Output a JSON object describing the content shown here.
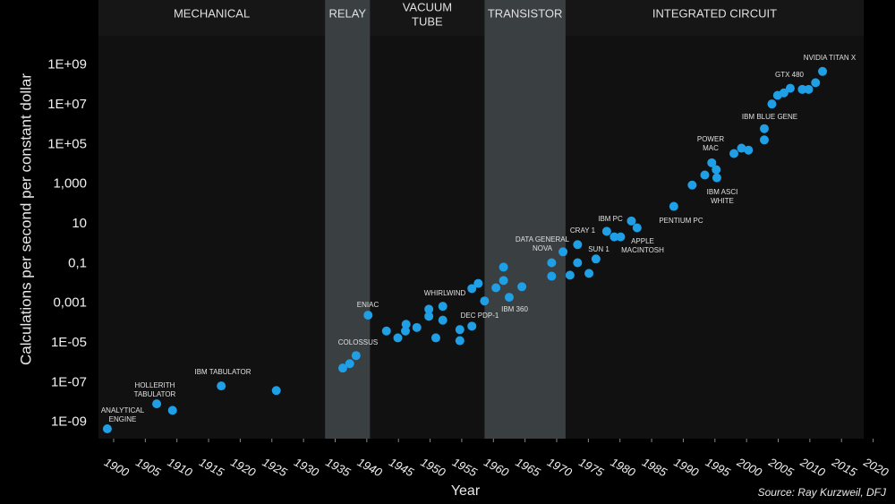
{
  "chart_data": {
    "type": "scatter",
    "xlabel": "Year",
    "ylabel": "Calculations per second per constant dollar",
    "source": "Source: Ray Kurzweil, DFJ",
    "color": "#1e9fe6",
    "log_y": true,
    "xlim": [
      1897.6,
      2018.5
    ],
    "ylim": [
      1.5e-10,
      30000000000.0
    ],
    "xticks": [
      1900,
      1905,
      1910,
      1915,
      1920,
      1925,
      1930,
      1935,
      1940,
      1945,
      1950,
      1955,
      1960,
      1965,
      1970,
      1975,
      1980,
      1985,
      1990,
      1995,
      2000,
      2005,
      2010,
      2015,
      2020
    ],
    "yticks": [
      {
        "value": 1000000000.0,
        "label": "1E+09"
      },
      {
        "value": 10000000.0,
        "label": "1E+07"
      },
      {
        "value": 100000.0,
        "label": "1E+05"
      },
      {
        "value": 1000,
        "label": "1,000"
      },
      10,
      {
        "value": 0.1,
        "label": "0,1"
      },
      {
        "value": 0.001,
        "label": "0,001"
      },
      {
        "value": 1e-05,
        "label": "1E-05"
      },
      {
        "value": 1e-07,
        "label": "1E-07"
      },
      {
        "value": 1e-09,
        "label": "1E-09"
      }
    ],
    "eras": [
      {
        "label": [
          "MECHANICAL"
        ],
        "start": 1897.6,
        "end": 1933.4,
        "shaded": false
      },
      {
        "label": [
          "RELAY"
        ],
        "start": 1933.4,
        "end": 1940.5,
        "shaded": true
      },
      {
        "label": [
          "VACUUM",
          "TUBE"
        ],
        "start": 1940.5,
        "end": 1958.6,
        "shaded": false
      },
      {
        "label": [
          "TRANSISTOR"
        ],
        "start": 1958.6,
        "end": 1971.4,
        "shaded": true
      },
      {
        "label": [
          "INTEGRATED CIRCUIT"
        ],
        "start": 1971.4,
        "end": 2018.5,
        "shaded": false
      }
    ],
    "x": [
      1899,
      1906.8,
      1909.3,
      1917,
      1925.7,
      1936.2,
      1937.3,
      1938.3,
      1940.2,
      1943.1,
      1944.9,
      1946.1,
      1946.2,
      1947.9,
      1949.8,
      1949.8,
      1950.9,
      1952,
      1952,
      1954.7,
      1954.7,
      1956.6,
      1956.6,
      1957.6,
      1958.6,
      1960.4,
      1961.6,
      1961.6,
      1962.5,
      1964.5,
      1969.2,
      1969.2,
      1971,
      1972.1,
      1973.3,
      1973.3,
      1975.1,
      1976.2,
      1977.9,
      1979.1,
      1980.1,
      1981.8,
      1982.7,
      1988.5,
      1991.4,
      1993.4,
      1994.5,
      1995.2,
      1995.3,
      1998,
      1999.2,
      2000.3,
      2002.8,
      2002.8,
      2004,
      2004.9,
      2005.9,
      2006.9,
      2008.8,
      2009.8,
      2010.9,
      2012
    ],
    "values": [
      4.7e-10,
      8.5e-09,
      4e-09,
      6.8e-08,
      4e-08,
      5.4e-07,
      9e-07,
      2.3e-06,
      0.00025,
      4e-05,
      1.8e-05,
      4e-05,
      8.7e-05,
      6e-05,
      0.00022,
      0.0005,
      1.8e-05,
      0.0007,
      0.00014,
      1.3e-05,
      4.7e-05,
      7e-05,
      0.0055,
      0.01,
      0.0013,
      0.006,
      0.066,
      0.014,
      0.002,
      0.0068,
      0.11,
      0.023,
      0.39,
      0.026,
      0.9,
      0.11,
      0.032,
      0.17,
      4.2,
      2.2,
      2.2,
      14,
      6.3,
      76,
      900,
      2900,
      12000,
      5400,
      2100,
      35000,
      65000,
      52000,
      170000,
      630000,
      11000000.0,
      30000000.0,
      40000000.0,
      68000000.0,
      60000000.0,
      60000000.0,
      130000000.0,
      480000000.0
    ],
    "annotations": [
      [
        "ANALYTICAL",
        "ENGINE"
      ],
      [
        "HOLLERITH",
        "TABULATOR"
      ],
      [
        "IBM TABULATOR"
      ],
      [
        "COLOSSUS"
      ],
      [
        "ENIAC"
      ],
      [
        "WHIRLWIND"
      ],
      [
        "DEC PDP-1"
      ],
      [
        "IBM 360"
      ],
      [
        "DATA GENERAL",
        "NOVA"
      ],
      [
        "CRAY 1"
      ],
      [
        "SUN 1"
      ],
      [
        "IBM PC"
      ],
      [
        "APPLE",
        "MACINTOSH"
      ],
      [
        "PENTIUM PC"
      ],
      [
        "POWER",
        "MAC"
      ],
      [
        "IBM ASCI",
        "WHITE"
      ],
      [
        "IBM BLUE GENE"
      ],
      [
        "GTX 480"
      ],
      [
        "NVIDIA TITAN X"
      ]
    ]
  }
}
